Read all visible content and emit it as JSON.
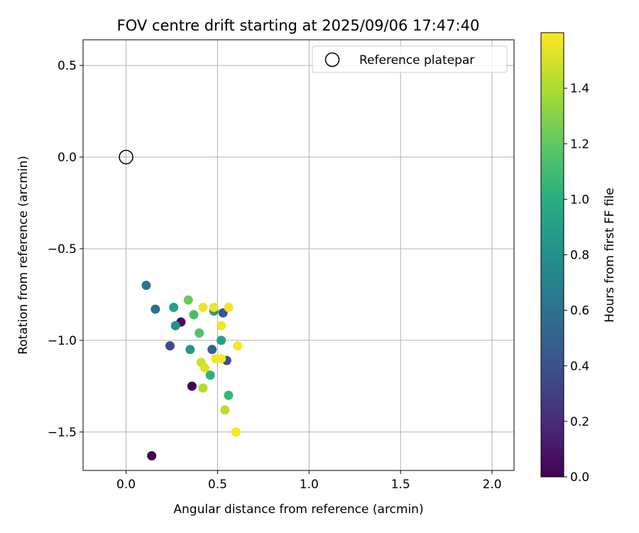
{
  "chart_data": {
    "type": "scatter",
    "title": "FOV centre drift starting at 2025/09/06 17:47:40",
    "xlabel": "Angular distance from reference (arcmin)",
    "ylabel": "Rotation from reference (arcmin)",
    "xlim": [
      -0.235,
      2.12
    ],
    "ylim": [
      -1.71,
      0.64
    ],
    "xticks": [
      0.0,
      0.5,
      1.0,
      1.5,
      2.0
    ],
    "xtick_labels": [
      "0.0",
      "0.5",
      "1.0",
      "1.5",
      "2.0"
    ],
    "yticks": [
      0.5,
      0.0,
      -0.5,
      -1.0,
      -1.5
    ],
    "ytick_labels": [
      "0.5",
      "0.0",
      "−0.5",
      "−1.0",
      "−1.5"
    ],
    "grid": true,
    "legend": {
      "position": "top-right",
      "entries": [
        {
          "label": "Reference platepar",
          "marker": "open-circle"
        }
      ]
    },
    "reference_point": {
      "name": "Reference platepar",
      "x": 0.0,
      "y": 0.0
    },
    "colorbar": {
      "label": "Hours from first FF file",
      "colormap": "viridis",
      "range": [
        0.0,
        1.6
      ],
      "ticks": [
        0.0,
        0.2,
        0.4,
        0.6,
        0.8,
        1.0,
        1.2,
        1.4
      ],
      "tick_labels": [
        "0.0",
        "0.2",
        "0.4",
        "0.6",
        "0.8",
        "1.0",
        "1.2",
        "1.4"
      ]
    },
    "points": [
      {
        "x": 0.14,
        "y": -1.63,
        "hours": 0.0
      },
      {
        "x": 0.36,
        "y": -1.25,
        "hours": 0.02
      },
      {
        "x": 0.3,
        "y": -0.9,
        "hours": 0.05
      },
      {
        "x": 0.24,
        "y": -1.03,
        "hours": 0.38
      },
      {
        "x": 0.55,
        "y": -1.11,
        "hours": 0.4
      },
      {
        "x": 0.53,
        "y": -0.85,
        "hours": 0.44
      },
      {
        "x": 0.47,
        "y": -1.05,
        "hours": 0.5
      },
      {
        "x": 0.16,
        "y": -0.83,
        "hours": 0.58
      },
      {
        "x": 0.11,
        "y": -0.7,
        "hours": 0.63
      },
      {
        "x": 0.27,
        "y": -0.92,
        "hours": 0.8
      },
      {
        "x": 0.35,
        "y": -1.05,
        "hours": 0.84
      },
      {
        "x": 0.48,
        "y": -0.84,
        "hours": 0.86
      },
      {
        "x": 0.26,
        "y": -0.82,
        "hours": 0.9
      },
      {
        "x": 0.52,
        "y": -1.0,
        "hours": 0.92
      },
      {
        "x": 0.46,
        "y": -1.19,
        "hours": 1.02
      },
      {
        "x": 0.56,
        "y": -1.3,
        "hours": 1.05
      },
      {
        "x": 0.37,
        "y": -0.86,
        "hours": 1.12
      },
      {
        "x": 0.4,
        "y": -0.96,
        "hours": 1.16
      },
      {
        "x": 0.34,
        "y": -0.78,
        "hours": 1.22
      },
      {
        "x": 0.42,
        "y": -1.26,
        "hours": 1.42
      },
      {
        "x": 0.54,
        "y": -1.38,
        "hours": 1.44
      },
      {
        "x": 0.41,
        "y": -1.12,
        "hours": 1.48
      },
      {
        "x": 0.43,
        "y": -1.15,
        "hours": 1.52
      },
      {
        "x": 0.42,
        "y": -0.82,
        "hours": 1.55
      },
      {
        "x": 0.48,
        "y": -0.82,
        "hours": 1.56
      },
      {
        "x": 0.56,
        "y": -0.82,
        "hours": 1.57
      },
      {
        "x": 0.52,
        "y": -0.92,
        "hours": 1.57
      },
      {
        "x": 0.49,
        "y": -1.1,
        "hours": 1.58
      },
      {
        "x": 0.52,
        "y": -1.1,
        "hours": 1.58
      },
      {
        "x": 0.61,
        "y": -1.03,
        "hours": 1.58
      },
      {
        "x": 0.6,
        "y": -1.5,
        "hours": 1.59
      }
    ]
  }
}
